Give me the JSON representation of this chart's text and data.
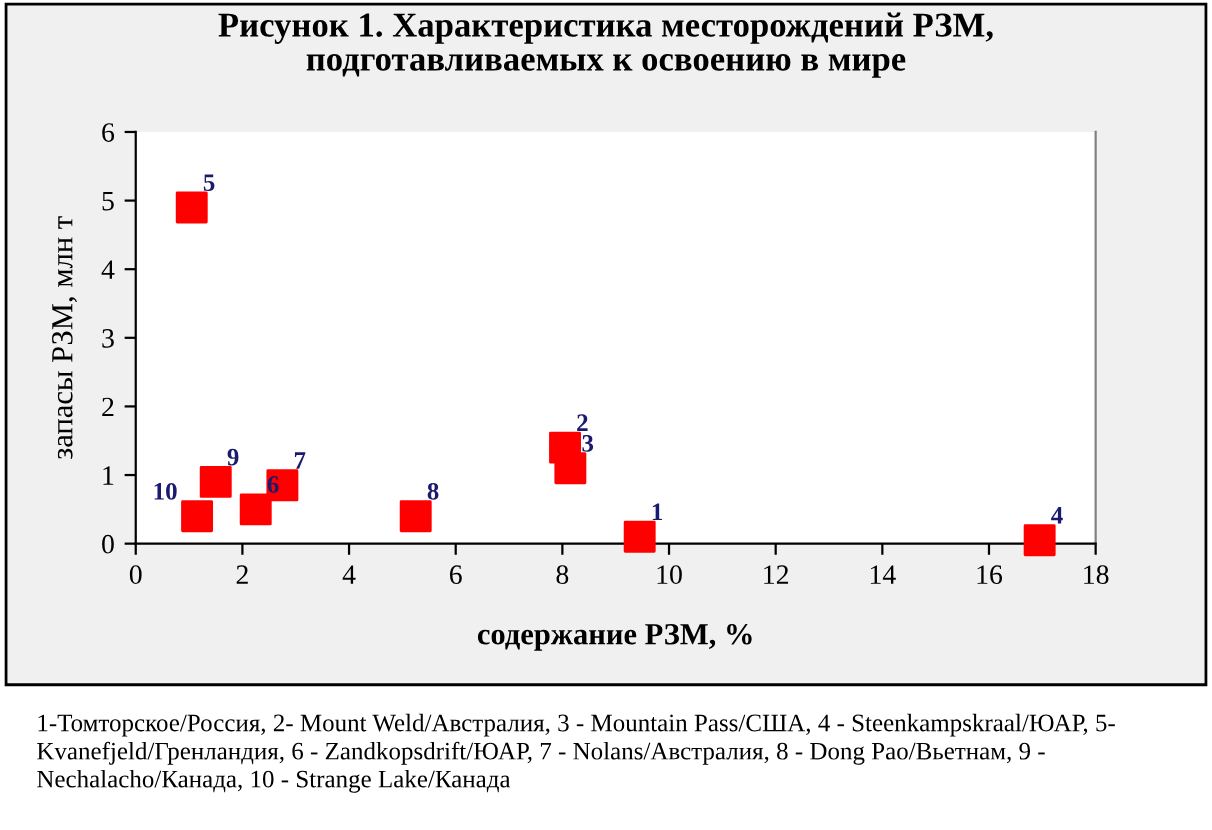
{
  "chart_data": {
    "type": "scatter",
    "title": "Рисунок 1. Характеристика месторождений РЗМ,\nподготавливаемых к освоению в мире",
    "xlabel": "содержание РЗМ, %",
    "ylabel": "запасы РЗМ, млн т",
    "x": [
      9.45,
      8.05,
      8.15,
      16.95,
      1.05,
      2.25,
      2.75,
      5.25,
      1.5,
      1.15
    ],
    "series": [
      {
        "color": "#ff0000",
        "values": [
          0.1,
          1.4,
          1.1,
          0.05,
          4.9,
          0.5,
          0.85,
          0.4,
          0.9,
          0.4
        ]
      }
    ],
    "marker": "square",
    "xlim": [
      0,
      18
    ],
    "xticks": [
      0,
      2,
      4,
      6,
      8,
      10,
      12,
      14,
      16,
      18
    ],
    "ylim": [
      0,
      6
    ],
    "yticks": [
      0,
      1,
      2,
      3,
      4,
      5,
      6
    ],
    "grid": false,
    "legend": false,
    "annotations": [
      {
        "text": "1",
        "x": 9.45,
        "y": 0.1
      },
      {
        "text": "2",
        "x": 8.05,
        "y": 1.4
      },
      {
        "text": "3",
        "x": 8.15,
        "y": 1.1
      },
      {
        "text": "4",
        "x": 16.95,
        "y": 0.05
      },
      {
        "text": "5",
        "x": 1.05,
        "y": 4.9
      },
      {
        "text": "6",
        "x": 2.25,
        "y": 0.5
      },
      {
        "text": "7",
        "x": 2.75,
        "y": 0.85
      },
      {
        "text": "8",
        "x": 5.25,
        "y": 0.4
      },
      {
        "text": "9",
        "x": 1.5,
        "y": 0.9
      },
      {
        "text": "10",
        "x": 1.15,
        "y": 0.4
      },
      "1-Томторское/Россия, 2- Mount Weld/Австралия, 3 - Mountain Pass/США, 4 - Steenkampskraal/ЮАР, 5- Kvanefjeld/Гренландия, 6 - Zandkopsdrift/ЮАР, 7 - Nolans/Австралия, 8 - Dong Pao/Вьетнам, 9 - Nechalacho/Канада, 10 - Strange Lake/Канада"
    ]
  }
}
